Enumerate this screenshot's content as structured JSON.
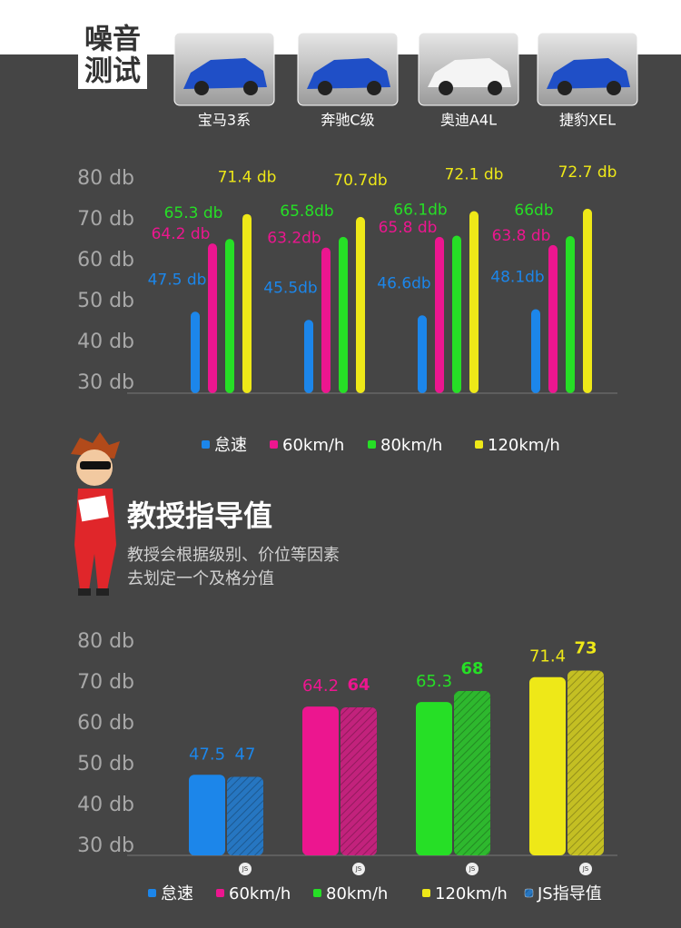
{
  "header": {
    "title_lines": [
      "噪音",
      "测试"
    ]
  },
  "section": {
    "title": "教授指导值",
    "description": [
      "教授会根据级别、价位等因素",
      "去划定一个及格分值"
    ]
  },
  "chart_data": [
    {
      "type": "grouped-bar",
      "categories": [
        "宝马3系",
        "奔驰C级",
        "奥迪A4L",
        "捷豹XEL"
      ],
      "series": [
        {
          "name": "怠速",
          "color": "#1c86ea",
          "values": [
            47.5,
            45.5,
            46.6,
            48.1
          ],
          "value_labels": [
            "47.5 db",
            "45.5db",
            "46.6db",
            "48.1db"
          ]
        },
        {
          "name": "60km/h",
          "color": "#ec168f",
          "values": [
            64.2,
            63.2,
            65.8,
            63.8
          ],
          "value_labels": [
            "64.2 db",
            "63.2db",
            "65.8 db",
            "63.8 db"
          ]
        },
        {
          "name": "80km/h",
          "color": "#26df26",
          "values": [
            65.3,
            65.8,
            66.1,
            66
          ],
          "value_labels": [
            "65.3 db",
            "65.8db",
            "66.1db",
            "66db"
          ]
        },
        {
          "name": "120km/h",
          "color": "#eee818",
          "values": [
            71.4,
            70.7,
            72.1,
            72.7
          ],
          "value_labels": [
            "71.4 db",
            "70.7db",
            "72.1 db",
            "72.7 db"
          ]
        }
      ],
      "ylim": [
        30,
        80
      ],
      "yticks": [
        {
          "value": 30,
          "label": "30 db"
        },
        {
          "value": 40,
          "label": "40 db"
        },
        {
          "value": 50,
          "label": "50 db"
        },
        {
          "value": 60,
          "label": "60 db"
        },
        {
          "value": 70,
          "label": "70 db"
        },
        {
          "value": 80,
          "label": "80 db"
        }
      ]
    },
    {
      "type": "paired-bar",
      "categories": [
        "怠速",
        "60km/h",
        "80km/h",
        "120km/h"
      ],
      "colors": [
        "#1c86ea",
        "#ec168f",
        "#26df26",
        "#eee818"
      ],
      "badge": "JS",
      "series": [
        {
          "values": [
            47.5,
            64.2,
            65.3,
            71.4
          ]
        },
        {
          "name": "JS指导值",
          "values": [
            47,
            64,
            68,
            73
          ]
        }
      ],
      "ylim": [
        30,
        80
      ],
      "yticks": [
        {
          "value": 30,
          "label": "30 db"
        },
        {
          "value": 40,
          "label": "40 db"
        },
        {
          "value": 50,
          "label": "50 db"
        },
        {
          "value": 60,
          "label": "60 db"
        },
        {
          "value": 70,
          "label": "70 db"
        },
        {
          "value": 80,
          "label": "80 db"
        }
      ]
    }
  ]
}
